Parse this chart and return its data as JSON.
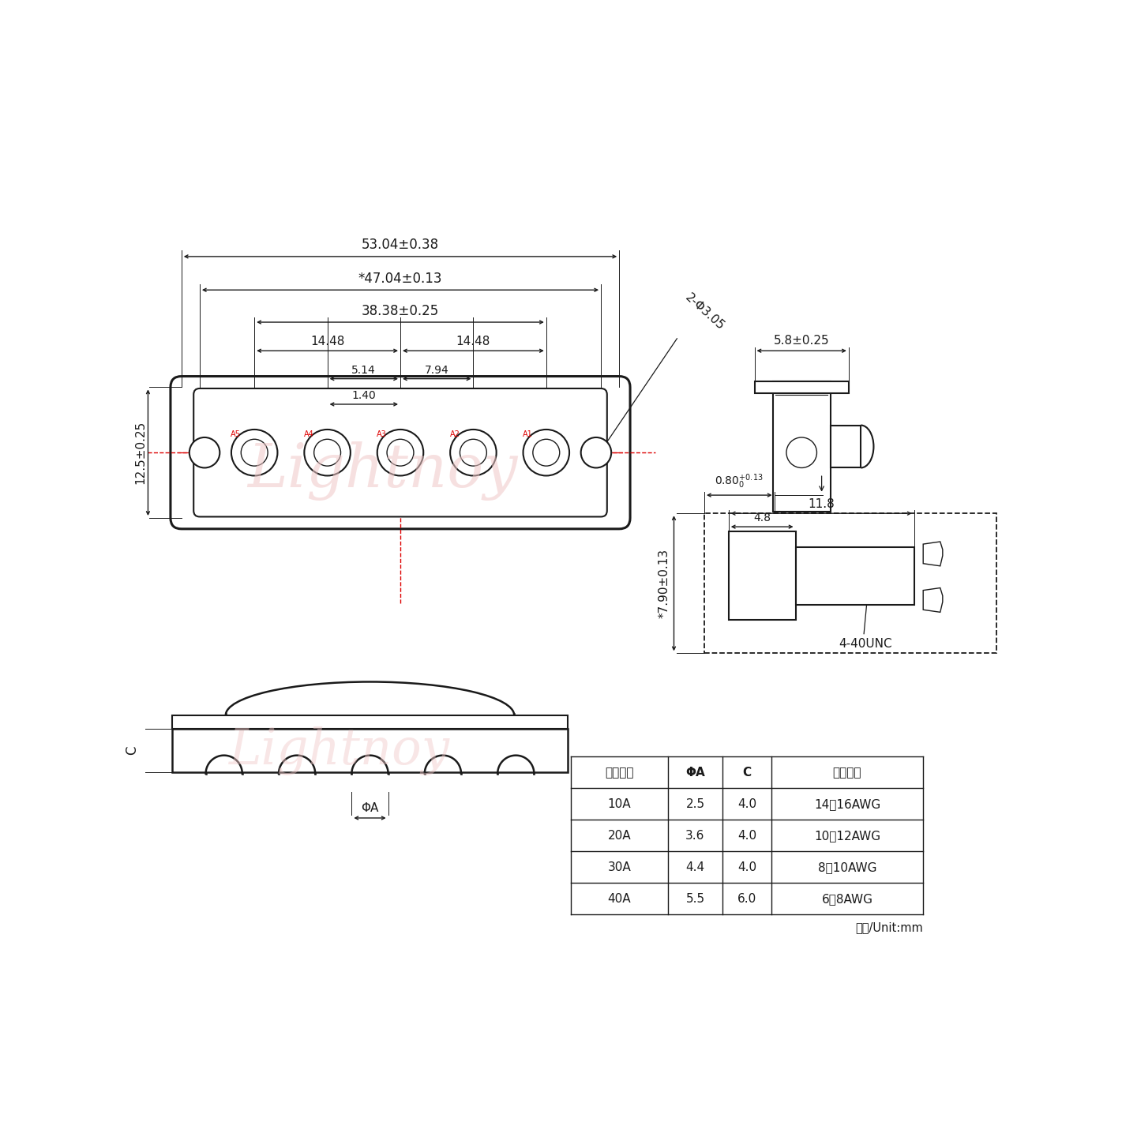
{
  "bg_color": "#ffffff",
  "lc": "#1a1a1a",
  "rc": "#dd0000",
  "watermark": "Lightnoy",
  "table_headers": [
    "额定电流",
    "ΦA",
    "C",
    "线材规格"
  ],
  "table_rows": [
    [
      "10A",
      "2.5",
      "4.0",
      "14～16AWG"
    ],
    [
      "20A",
      "3.6",
      "4.0",
      "10～12AWG"
    ],
    [
      "30A",
      "4.4",
      "4.0",
      "8～10AWG"
    ],
    [
      "40A",
      "5.5",
      "6.0",
      "6～8AWG"
    ]
  ],
  "unit_label": "单位/Unit:mm",
  "d1": "53.04±0.38",
  "d2": "*47.04±0.13",
  "d3": "38.38±0.25",
  "d4a": "14.48",
  "d4b": "14.48",
  "d5": "5.14",
  "d6": "7.94",
  "d7": "1.40",
  "d8": "12.5±0.25",
  "d9": "2-Φ3.05",
  "d10": "5.8±0.25",
  "d11": "*7.90±0.13",
  "d12_text": "0.80",
  "d12_sup": "+0.13",
  "d12_sub": "0",
  "d13": "11.8",
  "d14": "4.8",
  "d15": "4-40UNC",
  "phi_a": "ΦA",
  "c_label": "C",
  "pin_labels": [
    "A5",
    "A4",
    "A3",
    "A2",
    "A1"
  ]
}
